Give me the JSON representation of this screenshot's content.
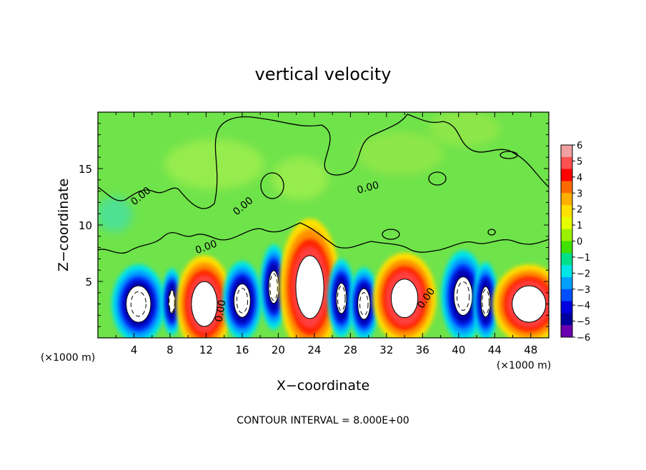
{
  "chart_data": {
    "type": "heatmap",
    "title": "vertical velocity",
    "xlabel": "X−coordinate",
    "ylabel": "Z−coordinate",
    "x_unit_left": "(×1000 m)",
    "x_unit_right": "(×1000 m)",
    "xlim": [
      0,
      50
    ],
    "ylim": [
      0,
      20
    ],
    "x_ticks": [
      4,
      8,
      12,
      16,
      20,
      24,
      28,
      32,
      36,
      40,
      44,
      48
    ],
    "y_ticks": [
      5,
      10,
      15
    ],
    "colorbar": {
      "ticks": [
        "6",
        "5",
        "4",
        "3",
        "2",
        "1",
        "0",
        "−1",
        "−2",
        "−3",
        "−4",
        "−5",
        "−6"
      ],
      "colors": [
        "#f0a0a0",
        "#ff5050",
        "#ff0000",
        "#ff6a00",
        "#ffb000",
        "#ffe000",
        "#e6ff00",
        "#9af000",
        "#40e000",
        "#00e08a",
        "#00e6e6",
        "#00a0ff",
        "#0050ff",
        "#0000e0",
        "#0000a0",
        "#6a00b0"
      ]
    },
    "contour_labels": [
      "0.00",
      "0.00",
      "0.00",
      "0.00",
      "0.00",
      "0.00"
    ],
    "footer": "CONTOUR INTERVAL = 8.000E+00",
    "cells": [
      {
        "x": 4.5,
        "z": 3.0,
        "rx": 2.2,
        "rz": 2.6,
        "w": -6.0
      },
      {
        "x": 8.2,
        "z": 3.2,
        "rx": 0.8,
        "rz": 2.2,
        "w": -4.5
      },
      {
        "x": 11.8,
        "z": 3.0,
        "rx": 2.3,
        "rz": 3.2,
        "w": 6.0
      },
      {
        "x": 16.0,
        "z": 3.3,
        "rx": 1.6,
        "rz": 2.6,
        "w": -5.5
      },
      {
        "x": 19.5,
        "z": 4.5,
        "rx": 1.1,
        "rz": 2.8,
        "w": -5.0
      },
      {
        "x": 23.5,
        "z": 4.5,
        "rx": 2.5,
        "rz": 4.5,
        "w": 6.0
      },
      {
        "x": 27.0,
        "z": 3.5,
        "rx": 1.1,
        "rz": 2.6,
        "w": -5.0
      },
      {
        "x": 29.5,
        "z": 3.0,
        "rx": 1.2,
        "rz": 2.4,
        "w": -5.5
      },
      {
        "x": 34.0,
        "z": 3.5,
        "rx": 2.6,
        "rz": 3.0,
        "w": 5.5
      },
      {
        "x": 40.5,
        "z": 3.7,
        "rx": 1.8,
        "rz": 3.0,
        "w": -5.5
      },
      {
        "x": 43.0,
        "z": 3.2,
        "rx": 1.0,
        "rz": 2.6,
        "w": -5.0
      },
      {
        "x": 47.8,
        "z": 3.0,
        "rx": 3.0,
        "rz": 2.6,
        "w": 6.0
      }
    ]
  }
}
